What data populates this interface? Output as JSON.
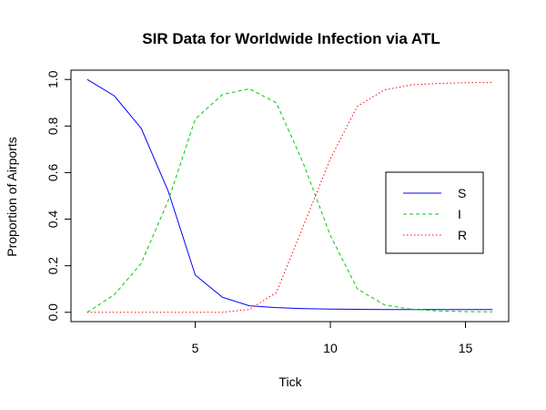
{
  "chart_data": {
    "type": "line",
    "title": "SIR Data for Worldwide Infection via ATL",
    "xlabel": "Tick",
    "ylabel": "Proportion of Airports",
    "xlim": [
      0.4,
      16.6
    ],
    "ylim": [
      -0.04,
      1.04
    ],
    "x_ticks": [
      5,
      10,
      15
    ],
    "y_ticks": [
      0.0,
      0.2,
      0.4,
      0.6,
      0.8,
      1.0
    ],
    "y_tick_labels": [
      "0.0",
      "0.2",
      "0.4",
      "0.6",
      "0.8",
      "1.0"
    ],
    "grid": false,
    "legend_position": "right",
    "x": [
      1,
      2,
      3,
      4,
      5,
      6,
      7,
      8,
      9,
      10,
      11,
      12,
      13,
      14,
      15,
      16
    ],
    "series": [
      {
        "name": "S",
        "color": "#0000FF",
        "dash": "solid",
        "values": [
          1.0,
          0.93,
          0.79,
          0.52,
          0.16,
          0.065,
          0.028,
          0.02,
          0.016,
          0.014,
          0.013,
          0.012,
          0.012,
          0.012,
          0.012,
          0.012
        ]
      },
      {
        "name": "I",
        "color": "#00CC00",
        "dash": "dashed",
        "values": [
          0.0,
          0.075,
          0.21,
          0.48,
          0.83,
          0.935,
          0.96,
          0.9,
          0.64,
          0.33,
          0.1,
          0.032,
          0.013,
          0.006,
          0.003,
          0.002
        ]
      },
      {
        "name": "R",
        "color": "#FF0000",
        "dash": "dotted",
        "values": [
          0.0,
          0.0,
          0.0,
          0.0,
          0.0,
          0.0,
          0.012,
          0.085,
          0.37,
          0.66,
          0.885,
          0.955,
          0.977,
          0.983,
          0.986,
          0.987
        ]
      }
    ]
  }
}
